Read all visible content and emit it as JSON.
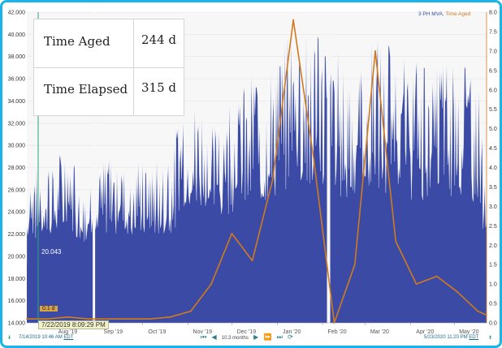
{
  "info": {
    "time_aged_label": "Time Aged",
    "time_aged_value": "244 d",
    "time_elapsed_label": "Time Elapsed",
    "time_elapsed_value": "315 d"
  },
  "legend": {
    "series1": "3 PH MVA",
    "sep": ",",
    "series2": "Time Aged"
  },
  "marker": {
    "value_label": "20.043",
    "badge": "0.1 d",
    "cursor_date": "7/22/2019 8:09:29 PM"
  },
  "footer": {
    "start": "7/14/2019 10:46 AM",
    "start_tz": "EDT",
    "span": "10.3 months",
    "end": "5/23/2020 11:20 PM",
    "end_tz": "EDT"
  },
  "colors": {
    "mva": "#3b4ba5",
    "aged": "#d17a1d",
    "frame": "#1ab5e8"
  },
  "chart_data": {
    "type": "area",
    "x_ticks": [
      "Aug '19",
      "Sep '19",
      "Oct '19",
      "Nov '19",
      "Dec '19",
      "Jan '20",
      "Feb '20",
      "Mar '20",
      "Apr '20",
      "May '20"
    ],
    "y_left": {
      "min": 14.0,
      "max": 42.0,
      "ticks": [
        "14.000",
        "16.000",
        "18.000",
        "20.000",
        "22.000",
        "24.000",
        "26.000",
        "28.000",
        "30.000",
        "32.000",
        "34.000",
        "36.000",
        "38.000",
        "40.000",
        "42.000"
      ]
    },
    "y_right": {
      "min": 0.0,
      "max": 8.0,
      "ticks": [
        "0.0",
        "0.5",
        "1.0",
        "1.5",
        "2.0",
        "2.5",
        "3.0",
        "3.5",
        "4.0",
        "4.5",
        "5.0",
        "5.5",
        "6.0",
        "6.5",
        "7.0",
        "7.5",
        "8.0"
      ]
    },
    "series": [
      {
        "name": "3 PH MVA",
        "axis": "left",
        "x": [
          "2019-07-14",
          "2019-07-28",
          "2019-08-11",
          "2019-08-25",
          "2019-09-08",
          "2019-09-22",
          "2019-10-06",
          "2019-10-20",
          "2019-11-03",
          "2019-11-17",
          "2019-12-01",
          "2019-12-15",
          "2019-12-29",
          "2020-01-12",
          "2020-01-26",
          "2020-02-09",
          "2020-02-23",
          "2020-03-08",
          "2020-03-22",
          "2020-04-05",
          "2020-04-19",
          "2020-05-03",
          "2020-05-17",
          "2020-05-23"
        ],
        "envelope": [
          27.5,
          28.8,
          29.6,
          27.0,
          29.5,
          29.3,
          28.4,
          29.6,
          35.8,
          32.5,
          34.8,
          36.5,
          37.0,
          41.8,
          40.2,
          39.5,
          37.5,
          40.5,
          39.0,
          37.8,
          38.6,
          39.2,
          36.5,
          25.5
        ]
      },
      {
        "name": "Time Aged",
        "axis": "right",
        "x": [
          "2019-07-14",
          "2019-07-28",
          "2019-08-11",
          "2019-08-25",
          "2019-09-08",
          "2019-09-22",
          "2019-10-06",
          "2019-10-20",
          "2019-11-03",
          "2019-11-17",
          "2019-12-01",
          "2019-12-15",
          "2019-12-29",
          "2020-01-12",
          "2020-01-26",
          "2020-02-09",
          "2020-02-23",
          "2020-03-08",
          "2020-03-22",
          "2020-04-05",
          "2020-04-19",
          "2020-05-03",
          "2020-05-17",
          "2020-05-23"
        ],
        "values": [
          0.1,
          0.1,
          0.15,
          0.1,
          0.1,
          0.1,
          0.1,
          0.15,
          0.3,
          1.0,
          2.3,
          1.6,
          3.7,
          7.8,
          4.2,
          0.0,
          1.5,
          7.0,
          2.1,
          1.0,
          1.2,
          0.8,
          0.3,
          0.2
        ]
      }
    ]
  }
}
